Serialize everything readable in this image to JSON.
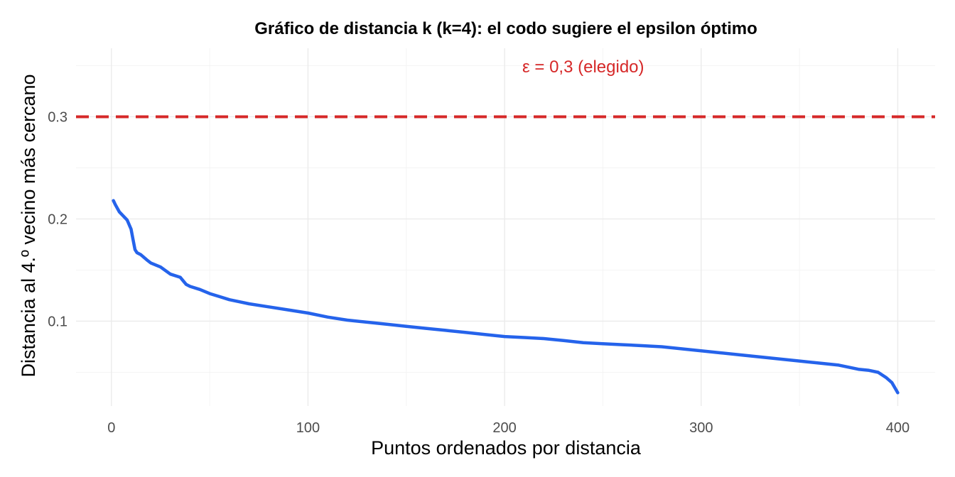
{
  "chart_data": {
    "type": "line",
    "title": "Gráfico de distancia k (k=4): el codo sugiere el epsilon óptimo",
    "xlabel": "Puntos ordenados por distancia",
    "ylabel": "Distancia al 4.º vecino más cercano",
    "xlim": [
      -18,
      419
    ],
    "ylim": [
      0.017,
      0.367
    ],
    "x_ticks": [
      0,
      100,
      200,
      300,
      400
    ],
    "x_tick_labels": [
      "0",
      "100",
      "200",
      "300",
      "400"
    ],
    "y_ticks": [
      0.1,
      0.2,
      0.3
    ],
    "y_tick_labels": [
      "0.1",
      "0.2",
      "0.3"
    ],
    "x_minor": [
      50,
      150,
      250,
      350
    ],
    "y_minor": [
      0.05,
      0.15,
      0.25,
      0.35
    ],
    "grid": true,
    "series": [
      {
        "color": "#2563eb",
        "x": [
          1,
          2,
          4,
          6,
          8,
          10,
          11,
          12,
          13,
          15,
          18,
          20,
          25,
          30,
          35,
          38,
          40,
          45,
          50,
          55,
          60,
          65,
          70,
          80,
          90,
          100,
          110,
          120,
          130,
          140,
          150,
          160,
          170,
          180,
          190,
          200,
          210,
          220,
          230,
          240,
          250,
          260,
          270,
          280,
          290,
          300,
          310,
          320,
          330,
          340,
          350,
          360,
          370,
          375,
          380,
          385,
          390,
          394,
          397,
          400
        ],
        "y": [
          0.218,
          0.214,
          0.207,
          0.203,
          0.199,
          0.19,
          0.18,
          0.17,
          0.167,
          0.165,
          0.16,
          0.157,
          0.153,
          0.146,
          0.143,
          0.136,
          0.134,
          0.131,
          0.127,
          0.124,
          0.121,
          0.119,
          0.117,
          0.114,
          0.111,
          0.108,
          0.104,
          0.101,
          0.099,
          0.097,
          0.095,
          0.093,
          0.091,
          0.089,
          0.087,
          0.085,
          0.084,
          0.083,
          0.081,
          0.079,
          0.078,
          0.077,
          0.076,
          0.075,
          0.073,
          0.071,
          0.069,
          0.067,
          0.065,
          0.063,
          0.061,
          0.059,
          0.057,
          0.055,
          0.053,
          0.052,
          0.05,
          0.045,
          0.04,
          0.03
        ]
      }
    ],
    "reference_lines": [
      {
        "y": 0.3,
        "color": "#d62828",
        "style": "dashed"
      }
    ],
    "annotations": [
      {
        "text": "ε = 0,3 (elegido)",
        "x": 240,
        "y": 0.349,
        "color": "#d62828"
      }
    ]
  }
}
